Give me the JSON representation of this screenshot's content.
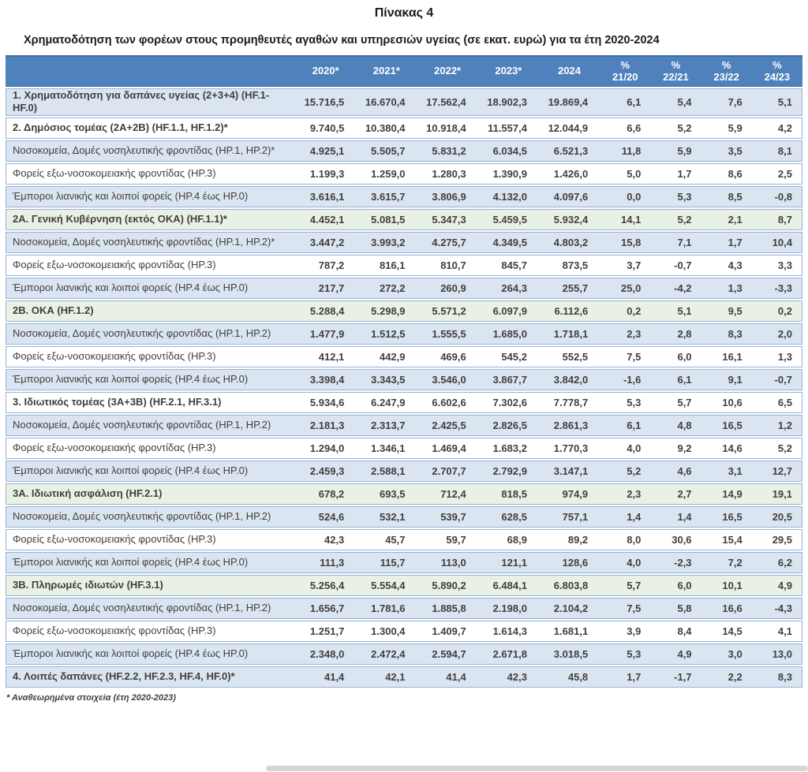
{
  "page": {
    "title": "Πίνακας 4",
    "subtitle": "Χρηματοδότηση των φορέων στους προμηθευτές αγαθών και υπηρεσιών υγείας (σε εκατ. ευρώ) για τα έτη 2020-2024",
    "footnote": "* Αναθεωρημένα στοιχεία (έτη 2020-2023)"
  },
  "colors": {
    "header_bg": "#4F81BD",
    "header_text": "#FFFFFF",
    "row_blue": "#DBE5F1",
    "row_white": "#FFFFFF",
    "row_green": "#E9F1E4",
    "border": "#95B3D7",
    "text": "#3F3F3F"
  },
  "table": {
    "year_headers": [
      "2020*",
      "2021*",
      "2022*",
      "2023*",
      "2024"
    ],
    "pct_headers": [
      {
        "top": "%",
        "bottom": "21/20"
      },
      {
        "top": "%",
        "bottom": "22/21"
      },
      {
        "top": "%",
        "bottom": "23/22"
      },
      {
        "top": "%",
        "bottom": "24/23"
      }
    ],
    "rows": [
      {
        "label": "1. Χρηματοδότηση για δαπάνες υγείας (2+3+4) (HF.1-HF.0)",
        "bg": "blue",
        "bold": true,
        "values": [
          "15.716,5",
          "16.670,4",
          "17.562,4",
          "18.902,3",
          "19.869,4",
          "6,1",
          "5,4",
          "7,6",
          "5,1"
        ]
      },
      {
        "label": "2. Δημόσιος τομέας (2Α+2Β) (HF.1.1, HF.1.2)*",
        "bg": "white",
        "bold": true,
        "values": [
          "9.740,5",
          "10.380,4",
          "10.918,4",
          "11.557,4",
          "12.044,9",
          "6,6",
          "5,2",
          "5,9",
          "4,2"
        ]
      },
      {
        "label": "Νοσοκομεία, Δομές νοσηλευτικής φροντίδας (HP.1, HP.2)*",
        "bg": "blue",
        "bold": false,
        "values": [
          "4.925,1",
          "5.505,7",
          "5.831,2",
          "6.034,5",
          "6.521,3",
          "11,8",
          "5,9",
          "3,5",
          "8,1"
        ]
      },
      {
        "label": "Φορείς εξω-νοσοκομειακής φροντίδας (HP.3)",
        "bg": "white",
        "bold": false,
        "values": [
          "1.199,3",
          "1.259,0",
          "1.280,3",
          "1.390,9",
          "1.426,0",
          "5,0",
          "1,7",
          "8,6",
          "2,5"
        ]
      },
      {
        "label": "Έμποροι λιανικής και λοιποί φορείς (HP.4 έως HP.0)",
        "bg": "blue",
        "bold": false,
        "values": [
          "3.616,1",
          "3.615,7",
          "3.806,9",
          "4.132,0",
          "4.097,6",
          "0,0",
          "5,3",
          "8,5",
          "-0,8"
        ]
      },
      {
        "label": "2Α. Γενική Κυβέρνηση (εκτός ΟΚΑ) (HF.1.1)*",
        "bg": "green",
        "bold": true,
        "values": [
          "4.452,1",
          "5.081,5",
          "5.347,3",
          "5.459,5",
          "5.932,4",
          "14,1",
          "5,2",
          "2,1",
          "8,7"
        ]
      },
      {
        "label": "Νοσοκομεία, Δομές νοσηλευτικής φροντίδας (HP.1, HP.2)*",
        "bg": "blue",
        "bold": false,
        "values": [
          "3.447,2",
          "3.993,2",
          "4.275,7",
          "4.349,5",
          "4.803,2",
          "15,8",
          "7,1",
          "1,7",
          "10,4"
        ]
      },
      {
        "label": "Φορείς εξω-νοσοκομειακής φροντίδας (HP.3)",
        "bg": "white",
        "bold": false,
        "values": [
          "787,2",
          "816,1",
          "810,7",
          "845,7",
          "873,5",
          "3,7",
          "-0,7",
          "4,3",
          "3,3"
        ]
      },
      {
        "label": "Έμποροι λιανικής και λοιποί φορείς (HP.4 έως HP.0)",
        "bg": "blue",
        "bold": false,
        "values": [
          "217,7",
          "272,2",
          "260,9",
          "264,3",
          "255,7",
          "25,0",
          "-4,2",
          "1,3",
          "-3,3"
        ]
      },
      {
        "label": "2Β. ΟΚΑ (HF.1.2)",
        "bg": "green",
        "bold": true,
        "values": [
          "5.288,4",
          "5.298,9",
          "5.571,2",
          "6.097,9",
          "6.112,6",
          "0,2",
          "5,1",
          "9,5",
          "0,2"
        ]
      },
      {
        "label": "Νοσοκομεία, Δομές νοσηλευτικής φροντίδας (HP.1, HP.2)",
        "bg": "blue",
        "bold": false,
        "values": [
          "1.477,9",
          "1.512,5",
          "1.555,5",
          "1.685,0",
          "1.718,1",
          "2,3",
          "2,8",
          "8,3",
          "2,0"
        ]
      },
      {
        "label": "Φορείς εξω-νοσοκομειακής φροντίδας (HP.3)",
        "bg": "white",
        "bold": false,
        "values": [
          "412,1",
          "442,9",
          "469,6",
          "545,2",
          "552,5",
          "7,5",
          "6,0",
          "16,1",
          "1,3"
        ]
      },
      {
        "label": "Έμποροι λιανικής και λοιποί φορείς (HP.4 έως HP.0)",
        "bg": "blue",
        "bold": false,
        "values": [
          "3.398,4",
          "3.343,5",
          "3.546,0",
          "3.867,7",
          "3.842,0",
          "-1,6",
          "6,1",
          "9,1",
          "-0,7"
        ]
      },
      {
        "label": "3. Ιδιωτικός τομέας (3Α+3Β) (HF.2.1, HF.3.1)",
        "bg": "white",
        "bold": true,
        "values": [
          "5.934,6",
          "6.247,9",
          "6.602,6",
          "7.302,6",
          "7.778,7",
          "5,3",
          "5,7",
          "10,6",
          "6,5"
        ]
      },
      {
        "label": "Νοσοκομεία, Δομές νοσηλευτικής φροντίδας (HP.1, HP.2)",
        "bg": "blue",
        "bold": false,
        "values": [
          "2.181,3",
          "2.313,7",
          "2.425,5",
          "2.826,5",
          "2.861,3",
          "6,1",
          "4,8",
          "16,5",
          "1,2"
        ]
      },
      {
        "label": "Φορείς εξω-νοσοκομειακής φροντίδας (HP.3)",
        "bg": "white",
        "bold": false,
        "values": [
          "1.294,0",
          "1.346,1",
          "1.469,4",
          "1.683,2",
          "1.770,3",
          "4,0",
          "9,2",
          "14,6",
          "5,2"
        ]
      },
      {
        "label": "Έμποροι λιανικής και λοιποί φορείς (HP.4 έως HP.0)",
        "bg": "blue",
        "bold": false,
        "values": [
          "2.459,3",
          "2.588,1",
          "2.707,7",
          "2.792,9",
          "3.147,1",
          "5,2",
          "4,6",
          "3,1",
          "12,7"
        ]
      },
      {
        "label": "3Α. Ιδιωτική ασφάλιση (HF.2.1)",
        "bg": "green",
        "bold": true,
        "values": [
          "678,2",
          "693,5",
          "712,4",
          "818,5",
          "974,9",
          "2,3",
          "2,7",
          "14,9",
          "19,1"
        ]
      },
      {
        "label": "Νοσοκομεία, Δομές νοσηλευτικής φροντίδας (HP.1, HP.2)",
        "bg": "blue",
        "bold": false,
        "values": [
          "524,6",
          "532,1",
          "539,7",
          "628,5",
          "757,1",
          "1,4",
          "1,4",
          "16,5",
          "20,5"
        ]
      },
      {
        "label": "Φορείς εξω-νοσοκομειακής φροντίδας (HP.3)",
        "bg": "white",
        "bold": false,
        "values": [
          "42,3",
          "45,7",
          "59,7",
          "68,9",
          "89,2",
          "8,0",
          "30,6",
          "15,4",
          "29,5"
        ]
      },
      {
        "label": "Έμποροι λιανικής και λοιποί φορείς (HP.4 έως HP.0)",
        "bg": "blue",
        "bold": false,
        "values": [
          "111,3",
          "115,7",
          "113,0",
          "121,1",
          "128,6",
          "4,0",
          "-2,3",
          "7,2",
          "6,2"
        ]
      },
      {
        "label": "3Β. Πληρωμές ιδιωτών (HF.3.1)",
        "bg": "green",
        "bold": true,
        "values": [
          "5.256,4",
          "5.554,4",
          "5.890,2",
          "6.484,1",
          "6.803,8",
          "5,7",
          "6,0",
          "10,1",
          "4,9"
        ]
      },
      {
        "label": "Νοσοκομεία, Δομές νοσηλευτικής φροντίδας (HP.1, HP.2)",
        "bg": "blue",
        "bold": false,
        "values": [
          "1.656,7",
          "1.781,6",
          "1.885,8",
          "2.198,0",
          "2.104,2",
          "7,5",
          "5,8",
          "16,6",
          "-4,3"
        ]
      },
      {
        "label": "Φορείς εξω-νοσοκομειακής φροντίδας (HP.3)",
        "bg": "white",
        "bold": false,
        "values": [
          "1.251,7",
          "1.300,4",
          "1.409,7",
          "1.614,3",
          "1.681,1",
          "3,9",
          "8,4",
          "14,5",
          "4,1"
        ]
      },
      {
        "label": "Έμποροι λιανικής και λοιποί φορείς (HP.4 έως HP.0)",
        "bg": "blue",
        "bold": false,
        "values": [
          "2.348,0",
          "2.472,4",
          "2.594,7",
          "2.671,8",
          "3.018,5",
          "5,3",
          "4,9",
          "3,0",
          "13,0"
        ]
      },
      {
        "label": "4. Λοιπές δαπάνες (HF.2.2, HF.2.3, HF.4, HF.0)*",
        "bg": "blue",
        "bold": true,
        "values": [
          "41,4",
          "42,1",
          "41,4",
          "42,3",
          "45,8",
          "1,7",
          "-1,7",
          "2,2",
          "8,3"
        ]
      }
    ]
  }
}
